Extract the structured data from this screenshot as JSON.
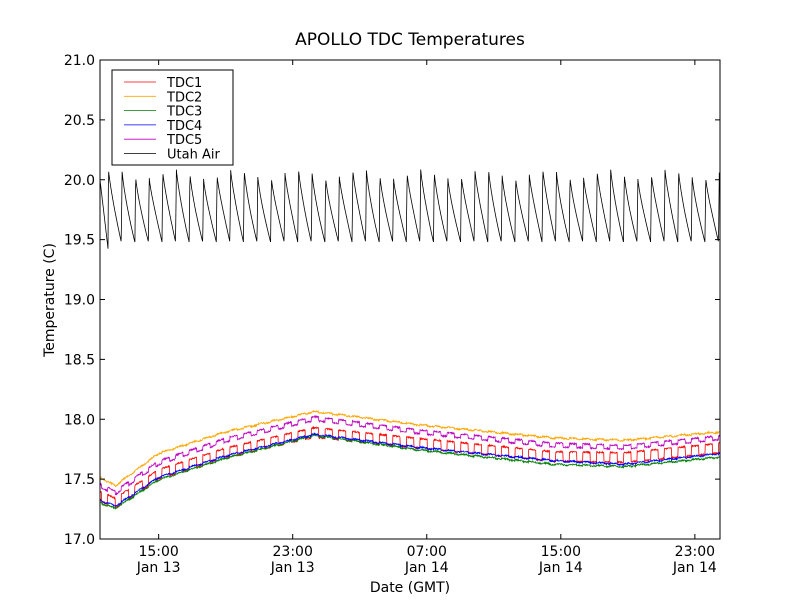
{
  "chart_data": {
    "type": "line",
    "title": "APOLLO TDC Temperatures",
    "xlabel": "Date (GMT)",
    "ylabel": "Temperature (C)",
    "ylim": [
      17.0,
      21.0
    ],
    "xlim_hours": [
      -3.5,
      33.5
    ],
    "x_reference": "15:00 Jan 13 = hour 0",
    "yticks": [
      "17.0",
      "17.5",
      "18.0",
      "18.5",
      "19.0",
      "19.5",
      "20.0",
      "20.5",
      "21.0"
    ],
    "ytick_values": [
      17.0,
      17.5,
      18.0,
      18.5,
      19.0,
      19.5,
      20.0,
      20.5,
      21.0
    ],
    "xticks": [
      {
        "hour": 0,
        "time": "15:00",
        "date": "Jan 13"
      },
      {
        "hour": 8,
        "time": "23:00",
        "date": "Jan 13"
      },
      {
        "hour": 16,
        "time": "07:00",
        "date": "Jan 14"
      },
      {
        "hour": 24,
        "time": "15:00",
        "date": "Jan 14"
      },
      {
        "hour": 32,
        "time": "23:00",
        "date": "Jan 14"
      }
    ],
    "grid": false,
    "legend_position": "top-left",
    "anchor_hours": [
      -3.5,
      -2.6,
      0,
      4,
      9.3,
      15.5,
      23.5,
      27.8,
      33.5
    ],
    "series": [
      {
        "name": "TDC1",
        "color": "#ff0000",
        "sawtooth_amp": 0.1,
        "values": [
          17.42,
          17.36,
          17.6,
          17.78,
          17.95,
          17.86,
          17.75,
          17.74,
          17.82
        ]
      },
      {
        "name": "TDC2",
        "color": "#ffa500",
        "sawtooth_amp": 0.01,
        "values": [
          17.52,
          17.45,
          17.72,
          17.9,
          18.07,
          17.96,
          17.85,
          17.83,
          17.9
        ]
      },
      {
        "name": "TDC3",
        "color": "#008000",
        "sawtooth_amp": 0.01,
        "values": [
          17.31,
          17.26,
          17.5,
          17.68,
          17.87,
          17.75,
          17.63,
          17.61,
          17.69
        ]
      },
      {
        "name": "TDC4",
        "color": "#0000ff",
        "sawtooth_amp": 0.01,
        "values": [
          17.33,
          17.28,
          17.52,
          17.7,
          17.88,
          17.77,
          17.66,
          17.63,
          17.72
        ]
      },
      {
        "name": "TDC5",
        "color": "#bf00bf",
        "sawtooth_amp": 0.04,
        "values": [
          17.47,
          17.41,
          17.66,
          17.85,
          18.03,
          17.92,
          17.81,
          17.79,
          17.87
        ]
      },
      {
        "name": "Utah Air",
        "color": "#000000",
        "sawtooth_low": 19.5,
        "sawtooth_high": 20.05,
        "period_hours": 0.81,
        "values": [
          20.0,
          19.75,
          19.75,
          19.75,
          19.75,
          19.75,
          19.75,
          19.75,
          19.75
        ]
      }
    ]
  }
}
